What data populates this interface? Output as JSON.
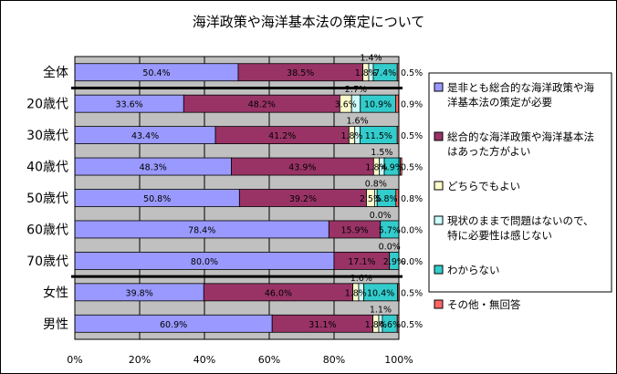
{
  "chart_data": {
    "type": "bar",
    "orientation": "horizontal",
    "stacked": "percent",
    "title": "海洋政策や海洋基本法の策定について",
    "categories": [
      "全体",
      "20歳代",
      "30歳代",
      "40歳代",
      "50歳代",
      "60歳代",
      "70歳代",
      "女性",
      "男性"
    ],
    "series": [
      {
        "name": "是非とも総合的な海洋政策や海洋基本法の策定が必要",
        "color": "#9999ff",
        "values": [
          50.4,
          33.6,
          43.4,
          48.3,
          50.8,
          78.4,
          80.0,
          39.8,
          60.9
        ],
        "labels": [
          "50.4%",
          "33.6%",
          "43.4%",
          "48.3%",
          "50.8%",
          "78.4%",
          "80.0%",
          "39.8%",
          "60.9%"
        ]
      },
      {
        "name": "総合的な海洋政策や海洋基本法はあった方がよい",
        "color": "#993366",
        "values": [
          38.5,
          48.2,
          41.2,
          43.9,
          39.2,
          15.9,
          17.1,
          46.0,
          31.1
        ],
        "labels": [
          "38.5%",
          "48.2%",
          "41.2%",
          "43.9%",
          "39.2%",
          "15.9%",
          "17.1%",
          "46.0%",
          "31.1%"
        ]
      },
      {
        "name": "どちらでもよい",
        "color": "#ffffcc",
        "values": [
          1.8,
          3.6,
          1.8,
          1.8,
          2.5,
          0.0,
          0.0,
          1.8,
          1.8
        ],
        "labels": [
          "1.8%",
          "3.6%",
          "1.8%",
          "1.8%",
          "2.5%",
          "",
          "",
          "1.8%",
          "1.8%"
        ]
      },
      {
        "name": "現状のままで問題はないので、特に必要性は感じない",
        "color": "#ccffff",
        "values": [
          1.4,
          2.7,
          1.6,
          1.5,
          0.8,
          0.0,
          0.0,
          1.6,
          1.1
        ],
        "labels": [
          "1.4%",
          "2.7%",
          "1.6%",
          "1.5%",
          "0.8%",
          "0.0%",
          "0.0%",
          "1.6%",
          "1.1%"
        ]
      },
      {
        "name": "わからない",
        "color": "#33cccc",
        "values": [
          7.4,
          10.9,
          11.5,
          4.9,
          5.8,
          5.7,
          2.9,
          10.4,
          4.6
        ],
        "labels": [
          "7.4%",
          "10.9%",
          "11.5%",
          "4.9%",
          "5.8%",
          "5.7%",
          "2.9%",
          "10.4%",
          "4.6%"
        ]
      },
      {
        "name": "その他・無回答",
        "color": "#ff6666",
        "values": [
          0.5,
          0.9,
          0.5,
          0.5,
          0.8,
          0.0,
          0.0,
          0.5,
          0.5
        ],
        "labels": [
          "0.5%",
          "0.9%",
          "0.5%",
          "0.5%",
          "0.8%",
          "0.0%",
          "0.0%",
          "0.5%",
          "0.5%"
        ]
      }
    ],
    "xticks": [
      "0%",
      "20%",
      "40%",
      "60%",
      "80%",
      "100%"
    ],
    "xlim": [
      0,
      100
    ],
    "grid": true,
    "legend": "right",
    "plot_background": "#c0c0c0"
  }
}
